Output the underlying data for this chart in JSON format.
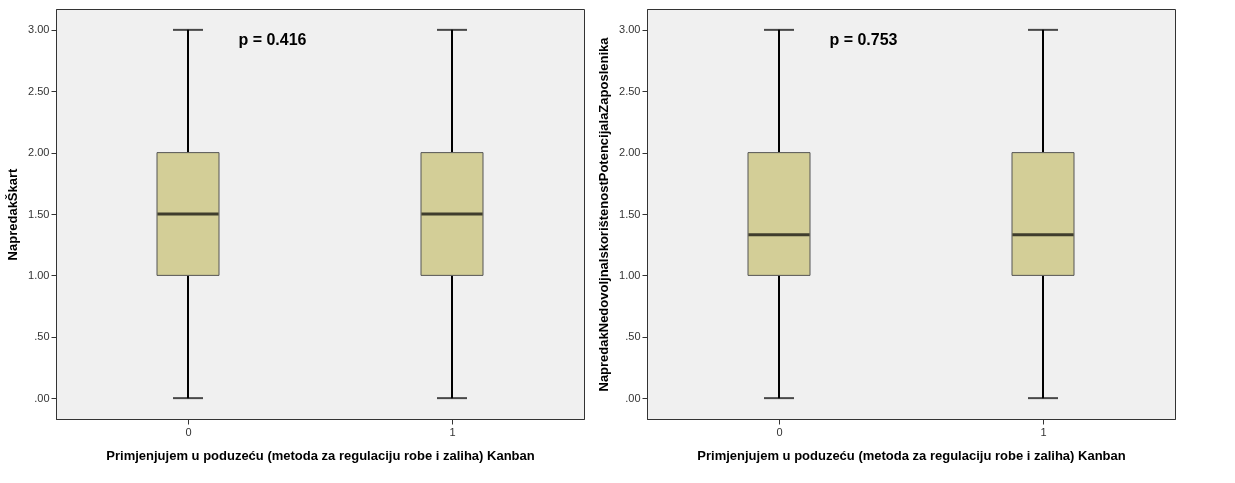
{
  "chart_data": [
    {
      "type": "box",
      "ylabel": "NapredakŠkart",
      "xlabel": "Primjenjujem u poduzeću  (metoda za regulaciju robe i zaliha) Kanban",
      "categories": [
        "0",
        "1"
      ],
      "series": [
        {
          "color": "#d3ce97",
          "boxes": [
            {
              "low": 0,
              "q1": 1,
              "median": 1.5,
              "q3": 2,
              "high": 3
            },
            {
              "low": 0,
              "q1": 1,
              "median": 1.5,
              "q3": 2,
              "high": 3
            }
          ]
        }
      ],
      "ylim": [
        -0.17,
        3.17
      ],
      "yticks": [
        {
          "value": 0,
          "label": ".00"
        },
        {
          "value": 0.5,
          "label": ".50"
        },
        {
          "value": 1,
          "label": "1.00"
        },
        {
          "value": 1.5,
          "label": "1.50"
        },
        {
          "value": 2,
          "label": "2.00"
        },
        {
          "value": 2.5,
          "label": "2.50"
        },
        {
          "value": 3,
          "label": "3.00"
        }
      ],
      "annotations": [
        "p = 0.416"
      ]
    },
    {
      "type": "box",
      "ylabel": "NapredakNedovoljnaIskorištenostPotencijalaZaposlenika",
      "xlabel": "Primjenjujem u poduzeću  (metoda za regulaciju robe i zaliha) Kanban",
      "categories": [
        "0",
        "1"
      ],
      "series": [
        {
          "color": "#d3ce97",
          "boxes": [
            {
              "low": 0,
              "q1": 1,
              "median": 1.33,
              "q3": 2,
              "high": 3
            },
            {
              "low": 0,
              "q1": 1,
              "median": 1.33,
              "q3": 2,
              "high": 3
            }
          ]
        }
      ],
      "ylim": [
        -0.17,
        3.17
      ],
      "yticks": [
        {
          "value": 0,
          "label": ".00"
        },
        {
          "value": 0.5,
          "label": ".50"
        },
        {
          "value": 1,
          "label": "1.00"
        },
        {
          "value": 1.5,
          "label": "1.50"
        },
        {
          "value": 2,
          "label": "2.00"
        },
        {
          "value": 2.5,
          "label": "2.50"
        },
        {
          "value": 3,
          "label": "3.00"
        }
      ],
      "annotations": [
        "p = 0.753"
      ]
    }
  ]
}
